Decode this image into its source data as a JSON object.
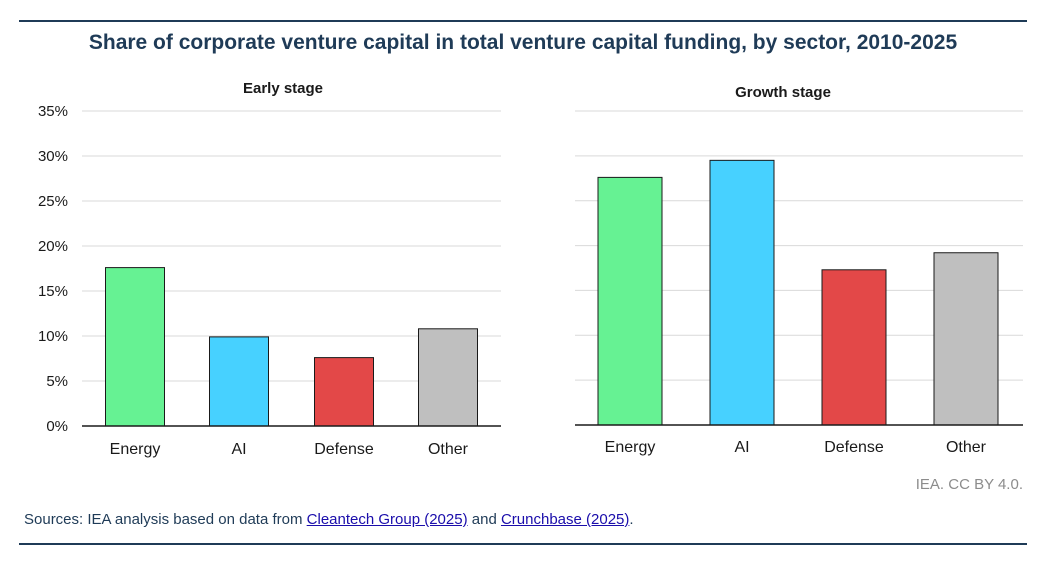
{
  "title": "Share of corporate venture capital in total venture capital funding, by sector, 2010-2025",
  "credit": "IEA. CC BY 4.0.",
  "sources": {
    "prefix": "Sources: IEA analysis based on data from ",
    "link1": "Cleantech Group (2025)",
    "middle": " and ",
    "link2": "Crunchbase (2025)",
    "suffix": "."
  },
  "colors": {
    "title": "#1f3b57",
    "Energy": "#66f293",
    "AI": "#47d1ff",
    "Defense": "#e34848",
    "Other": "#bfbfbf"
  },
  "chart_data": [
    {
      "type": "bar",
      "title": "Early stage",
      "categories": [
        "Energy",
        "AI",
        "Defense",
        "Other"
      ],
      "values": [
        17.6,
        9.9,
        7.6,
        10.8
      ],
      "ylim": [
        0,
        35
      ],
      "yticks": [
        "0%",
        "5%",
        "10%",
        "15%",
        "20%",
        "25%",
        "30%",
        "35%"
      ],
      "ylabel": "",
      "xlabel": "",
      "grid": true
    },
    {
      "type": "bar",
      "title": "Growth stage",
      "categories": [
        "Energy",
        "AI",
        "Defense",
        "Other"
      ],
      "values": [
        27.6,
        29.5,
        17.3,
        19.2
      ],
      "ylim": [
        0,
        35
      ],
      "ylabel": "",
      "xlabel": "",
      "grid": true
    }
  ]
}
